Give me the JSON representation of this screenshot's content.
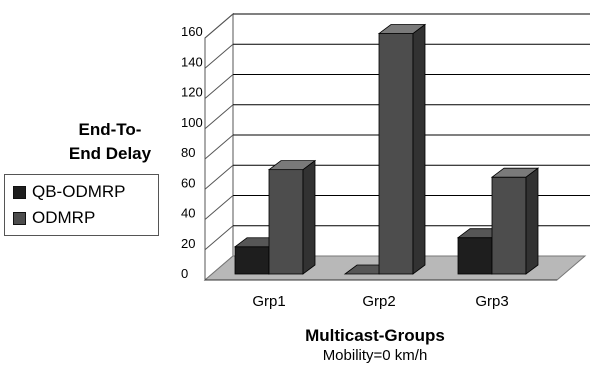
{
  "chart_data": {
    "type": "bar",
    "categories": [
      "Grp1",
      "Grp2",
      "Grp3"
    ],
    "series": [
      {
        "name": "QB-ODMRP",
        "values": [
          18,
          0,
          24
        ],
        "color": "#1e1e1e"
      },
      {
        "name": "ODMRP",
        "values": [
          69,
          159,
          64
        ],
        "color": "#4d4d4d"
      }
    ],
    "yticks": [
      "0",
      "20",
      "40",
      "60",
      "80",
      "100",
      "120",
      "140",
      "160"
    ],
    "ylim": [
      0,
      160
    ],
    "ylabel_lines": [
      "End-To-",
      "End Delay"
    ],
    "xlabel": "Multicast-Groups",
    "subtitle": "Mobility=0 km/h",
    "grid": true,
    "legend_position": "left",
    "style": "3d"
  }
}
